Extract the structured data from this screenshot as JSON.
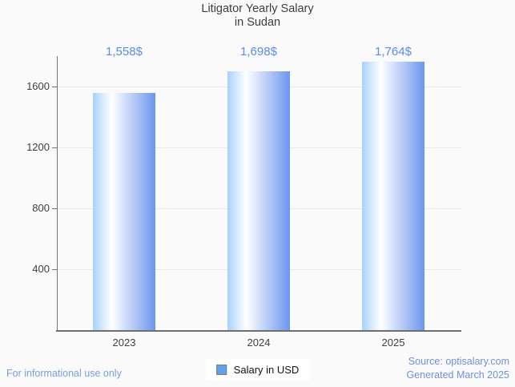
{
  "title": {
    "line1": "Litigator Yearly Salary",
    "line2": "in Sudan"
  },
  "chart_data": {
    "type": "bar",
    "title": "Litigator Yearly Salary in Sudan",
    "categories": [
      "2023",
      "2024",
      "2025"
    ],
    "series": [
      {
        "name": "Salary in USD",
        "values": [
          1558,
          1698,
          1764
        ]
      }
    ],
    "value_labels": [
      "1,558$",
      "1,698$",
      "1,764$"
    ],
    "xlabel": "",
    "ylabel": "",
    "ylim": [
      0,
      1800
    ],
    "yticks": [
      400,
      800,
      1200,
      1600
    ],
    "grid": "horizontal",
    "legend_position": "bottom-center"
  },
  "legend": {
    "label": "Salary in USD",
    "marker_color": "#64a0f0"
  },
  "footer": {
    "left_note": "For informational use only",
    "source_line1": "Source: optisalary.com",
    "source_line2": "Generated March 2025"
  },
  "colors": {
    "background": "#fafafa",
    "title_text": "#3c4043",
    "axis_text": "#3f3f3f",
    "axis_line": "#757575",
    "baseline": "#6e6e6e",
    "grid": "#e9e9e9",
    "value_label": "#5a8bea",
    "bar_gradient": [
      "#a9d1fc",
      "#ffffff",
      "#6d96ee"
    ],
    "footer_left": "#7a9ce9",
    "footer_right": "#6e91dd"
  }
}
